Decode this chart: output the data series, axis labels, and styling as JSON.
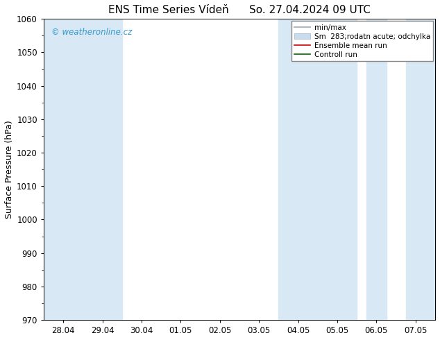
{
  "title": "ENS Time Series Vídeň",
  "title_right": "So. 27.04.2024 09 UTC",
  "ylabel": "Surface Pressure (hPa)",
  "ylim": [
    970,
    1060
  ],
  "yticks": [
    970,
    980,
    990,
    1000,
    1010,
    1020,
    1030,
    1040,
    1050,
    1060
  ],
  "xtick_labels": [
    "28.04",
    "29.04",
    "30.04",
    "01.05",
    "02.05",
    "03.05",
    "04.05",
    "05.05",
    "06.05",
    "07.05"
  ],
  "watermark": "© weatheronline.cz",
  "watermark_color": "#3399cc",
  "background_color": "#ffffff",
  "plot_bg_color": "#ffffff",
  "shaded_band_color": "#d8e8f4",
  "legend_labels": [
    "min/max",
    "Sm  283;rodatn acute; odchylka",
    "Ensemble mean run",
    "Controll run"
  ],
  "legend_color_minmax": "#b0b8c0",
  "legend_color_sm": "#c8dced",
  "legend_color_mean": "#cc0000",
  "legend_color_control": "#006600",
  "title_fontsize": 11,
  "label_fontsize": 9,
  "tick_fontsize": 8.5
}
